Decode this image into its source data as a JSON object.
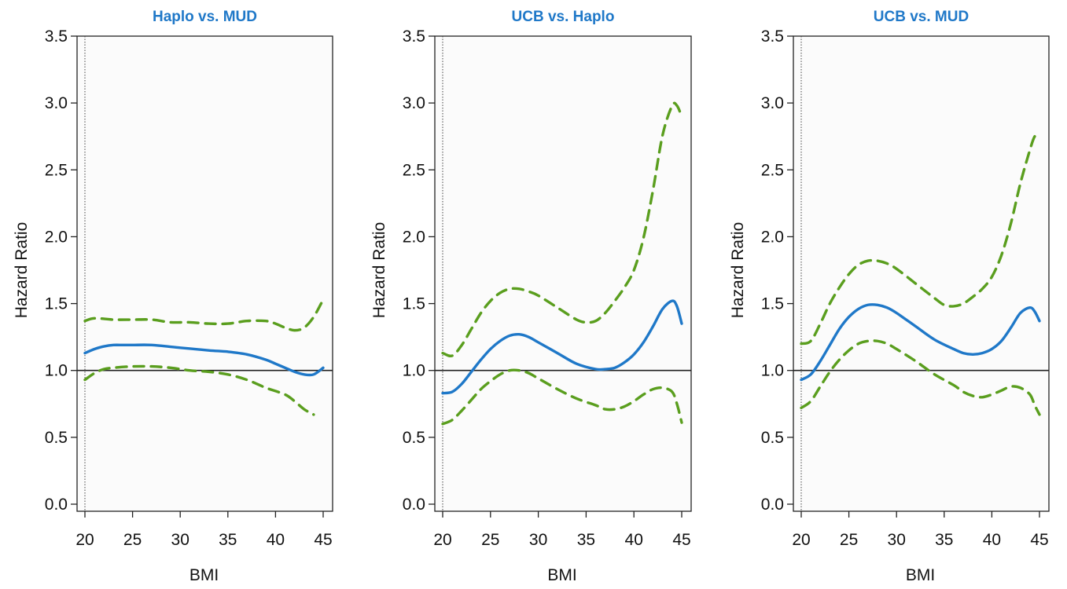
{
  "colors": {
    "estimate": "#1f78c8",
    "confidence_band": "#5a9e1e",
    "reference": "#222222",
    "title": "#1f78c8",
    "plot_background": "#fbfbfb"
  },
  "chart_data": [
    {
      "type": "line",
      "title": "Haplo vs. MUD",
      "xlabel": "BMI",
      "ylabel": "Hazard Ratio",
      "xlim": [
        20,
        45
      ],
      "ylim": [
        0,
        3.5
      ],
      "xticks": [
        "20",
        "25",
        "30",
        "35",
        "40",
        "45"
      ],
      "yticks": [
        "0.0",
        "0.5",
        "1.0",
        "1.5",
        "2.0",
        "2.5",
        "3.0",
        "3.5"
      ],
      "reference_line_y": 1.0,
      "reference_line_x": 20,
      "grid": false,
      "series": [
        {
          "role": "estimate",
          "style": "solid",
          "x": [
            20,
            21,
            22,
            23,
            24,
            25,
            27,
            30,
            33,
            35,
            37,
            39,
            40,
            41,
            42,
            43,
            44,
            45
          ],
          "y": [
            1.13,
            1.16,
            1.18,
            1.19,
            1.19,
            1.19,
            1.19,
            1.17,
            1.15,
            1.14,
            1.12,
            1.08,
            1.05,
            1.02,
            0.99,
            0.97,
            0.97,
            1.02
          ]
        },
        {
          "role": "upper",
          "style": "dashed",
          "x": [
            20,
            21,
            23,
            25,
            27,
            29,
            31,
            33,
            35,
            37,
            39,
            40,
            41,
            42,
            43,
            44,
            45
          ],
          "y": [
            1.37,
            1.39,
            1.38,
            1.38,
            1.38,
            1.36,
            1.36,
            1.35,
            1.35,
            1.37,
            1.37,
            1.35,
            1.32,
            1.3,
            1.32,
            1.4,
            1.53
          ]
        },
        {
          "role": "lower",
          "style": "dashed",
          "x": [
            20,
            21,
            22,
            23,
            25,
            27,
            29,
            31,
            33,
            35,
            37,
            39,
            41,
            42,
            43,
            44
          ],
          "y": [
            0.93,
            0.98,
            1.01,
            1.02,
            1.03,
            1.03,
            1.02,
            1.0,
            0.99,
            0.97,
            0.93,
            0.87,
            0.82,
            0.77,
            0.71,
            0.67
          ]
        }
      ]
    },
    {
      "type": "line",
      "title": "UCB vs. Haplo",
      "xlabel": "BMI",
      "ylabel": "Hazard Ratio",
      "xlim": [
        20,
        45
      ],
      "ylim": [
        0,
        3.5
      ],
      "xticks": [
        "20",
        "25",
        "30",
        "35",
        "40",
        "45"
      ],
      "yticks": [
        "0.0",
        "0.5",
        "1.0",
        "1.5",
        "2.0",
        "2.5",
        "3.0",
        "3.5"
      ],
      "reference_line_y": 1.0,
      "reference_line_x": 20,
      "grid": false,
      "series": [
        {
          "role": "estimate",
          "style": "solid",
          "x": [
            20,
            21,
            22,
            23,
            24,
            25,
            26,
            27,
            28,
            29,
            30,
            32,
            34,
            36,
            37,
            38,
            39,
            40,
            41,
            42,
            43,
            44,
            44.5,
            45
          ],
          "y": [
            0.83,
            0.84,
            0.9,
            0.99,
            1.08,
            1.16,
            1.22,
            1.26,
            1.27,
            1.25,
            1.21,
            1.13,
            1.05,
            1.01,
            1.01,
            1.02,
            1.06,
            1.12,
            1.21,
            1.33,
            1.46,
            1.52,
            1.48,
            1.35
          ]
        },
        {
          "role": "upper",
          "style": "dashed",
          "x": [
            20,
            21,
            22,
            23,
            24,
            25,
            26,
            27,
            28,
            29,
            30,
            32,
            34,
            35,
            36,
            37,
            38,
            39,
            40,
            41,
            42,
            43,
            44,
            44.5,
            45
          ],
          "y": [
            1.13,
            1.11,
            1.19,
            1.31,
            1.43,
            1.52,
            1.58,
            1.61,
            1.61,
            1.59,
            1.56,
            1.47,
            1.38,
            1.36,
            1.37,
            1.43,
            1.52,
            1.62,
            1.75,
            1.99,
            2.35,
            2.76,
            2.98,
            2.98,
            2.9
          ]
        },
        {
          "role": "lower",
          "style": "dashed",
          "x": [
            20,
            21,
            22,
            23,
            24,
            25,
            26,
            27,
            28,
            29,
            30,
            32,
            34,
            36,
            37,
            38,
            39,
            40,
            41,
            42,
            43,
            44,
            44.5,
            45
          ],
          "y": [
            0.6,
            0.63,
            0.7,
            0.78,
            0.86,
            0.92,
            0.97,
            1.0,
            1.0,
            0.98,
            0.94,
            0.86,
            0.79,
            0.74,
            0.71,
            0.71,
            0.73,
            0.77,
            0.82,
            0.86,
            0.87,
            0.84,
            0.75,
            0.61
          ]
        }
      ]
    },
    {
      "type": "line",
      "title": "UCB vs. MUD",
      "xlabel": "BMI",
      "ylabel": "Hazard Ratio",
      "xlim": [
        20,
        45
      ],
      "ylim": [
        0,
        3.5
      ],
      "xticks": [
        "20",
        "25",
        "30",
        "35",
        "40",
        "45"
      ],
      "yticks": [
        "0.0",
        "0.5",
        "1.0",
        "1.5",
        "2.0",
        "2.5",
        "3.0",
        "3.5"
      ],
      "reference_line_y": 1.0,
      "reference_line_x": 20,
      "grid": false,
      "series": [
        {
          "role": "estimate",
          "style": "solid",
          "x": [
            20,
            21,
            22,
            23,
            24,
            25,
            26,
            27,
            28,
            29,
            30,
            32,
            34,
            36,
            37,
            38,
            39,
            40,
            41,
            42,
            43,
            44,
            44.5,
            45
          ],
          "y": [
            0.93,
            0.97,
            1.07,
            1.19,
            1.31,
            1.4,
            1.46,
            1.49,
            1.49,
            1.47,
            1.43,
            1.33,
            1.23,
            1.16,
            1.13,
            1.12,
            1.13,
            1.16,
            1.22,
            1.32,
            1.43,
            1.47,
            1.44,
            1.37
          ]
        },
        {
          "role": "upper",
          "style": "dashed",
          "x": [
            20,
            21,
            22,
            23,
            24,
            25,
            26,
            27,
            28,
            29,
            30,
            32,
            34,
            35,
            36,
            37,
            38,
            39,
            40,
            41,
            42,
            43,
            44,
            44.5,
            45
          ],
          "y": [
            1.2,
            1.22,
            1.35,
            1.5,
            1.62,
            1.72,
            1.79,
            1.82,
            1.82,
            1.8,
            1.76,
            1.65,
            1.54,
            1.49,
            1.48,
            1.5,
            1.55,
            1.61,
            1.7,
            1.86,
            2.1,
            2.4,
            2.65,
            2.75,
            2.76
          ]
        },
        {
          "role": "lower",
          "style": "dashed",
          "x": [
            20,
            21,
            22,
            23,
            24,
            25,
            26,
            27,
            28,
            29,
            30,
            32,
            34,
            36,
            37,
            38,
            39,
            40,
            41,
            42,
            43,
            44,
            44.5,
            45
          ],
          "y": [
            0.72,
            0.77,
            0.88,
            0.99,
            1.08,
            1.15,
            1.2,
            1.22,
            1.22,
            1.2,
            1.16,
            1.07,
            0.97,
            0.89,
            0.84,
            0.81,
            0.8,
            0.82,
            0.85,
            0.88,
            0.87,
            0.82,
            0.74,
            0.67
          ]
        }
      ]
    }
  ]
}
